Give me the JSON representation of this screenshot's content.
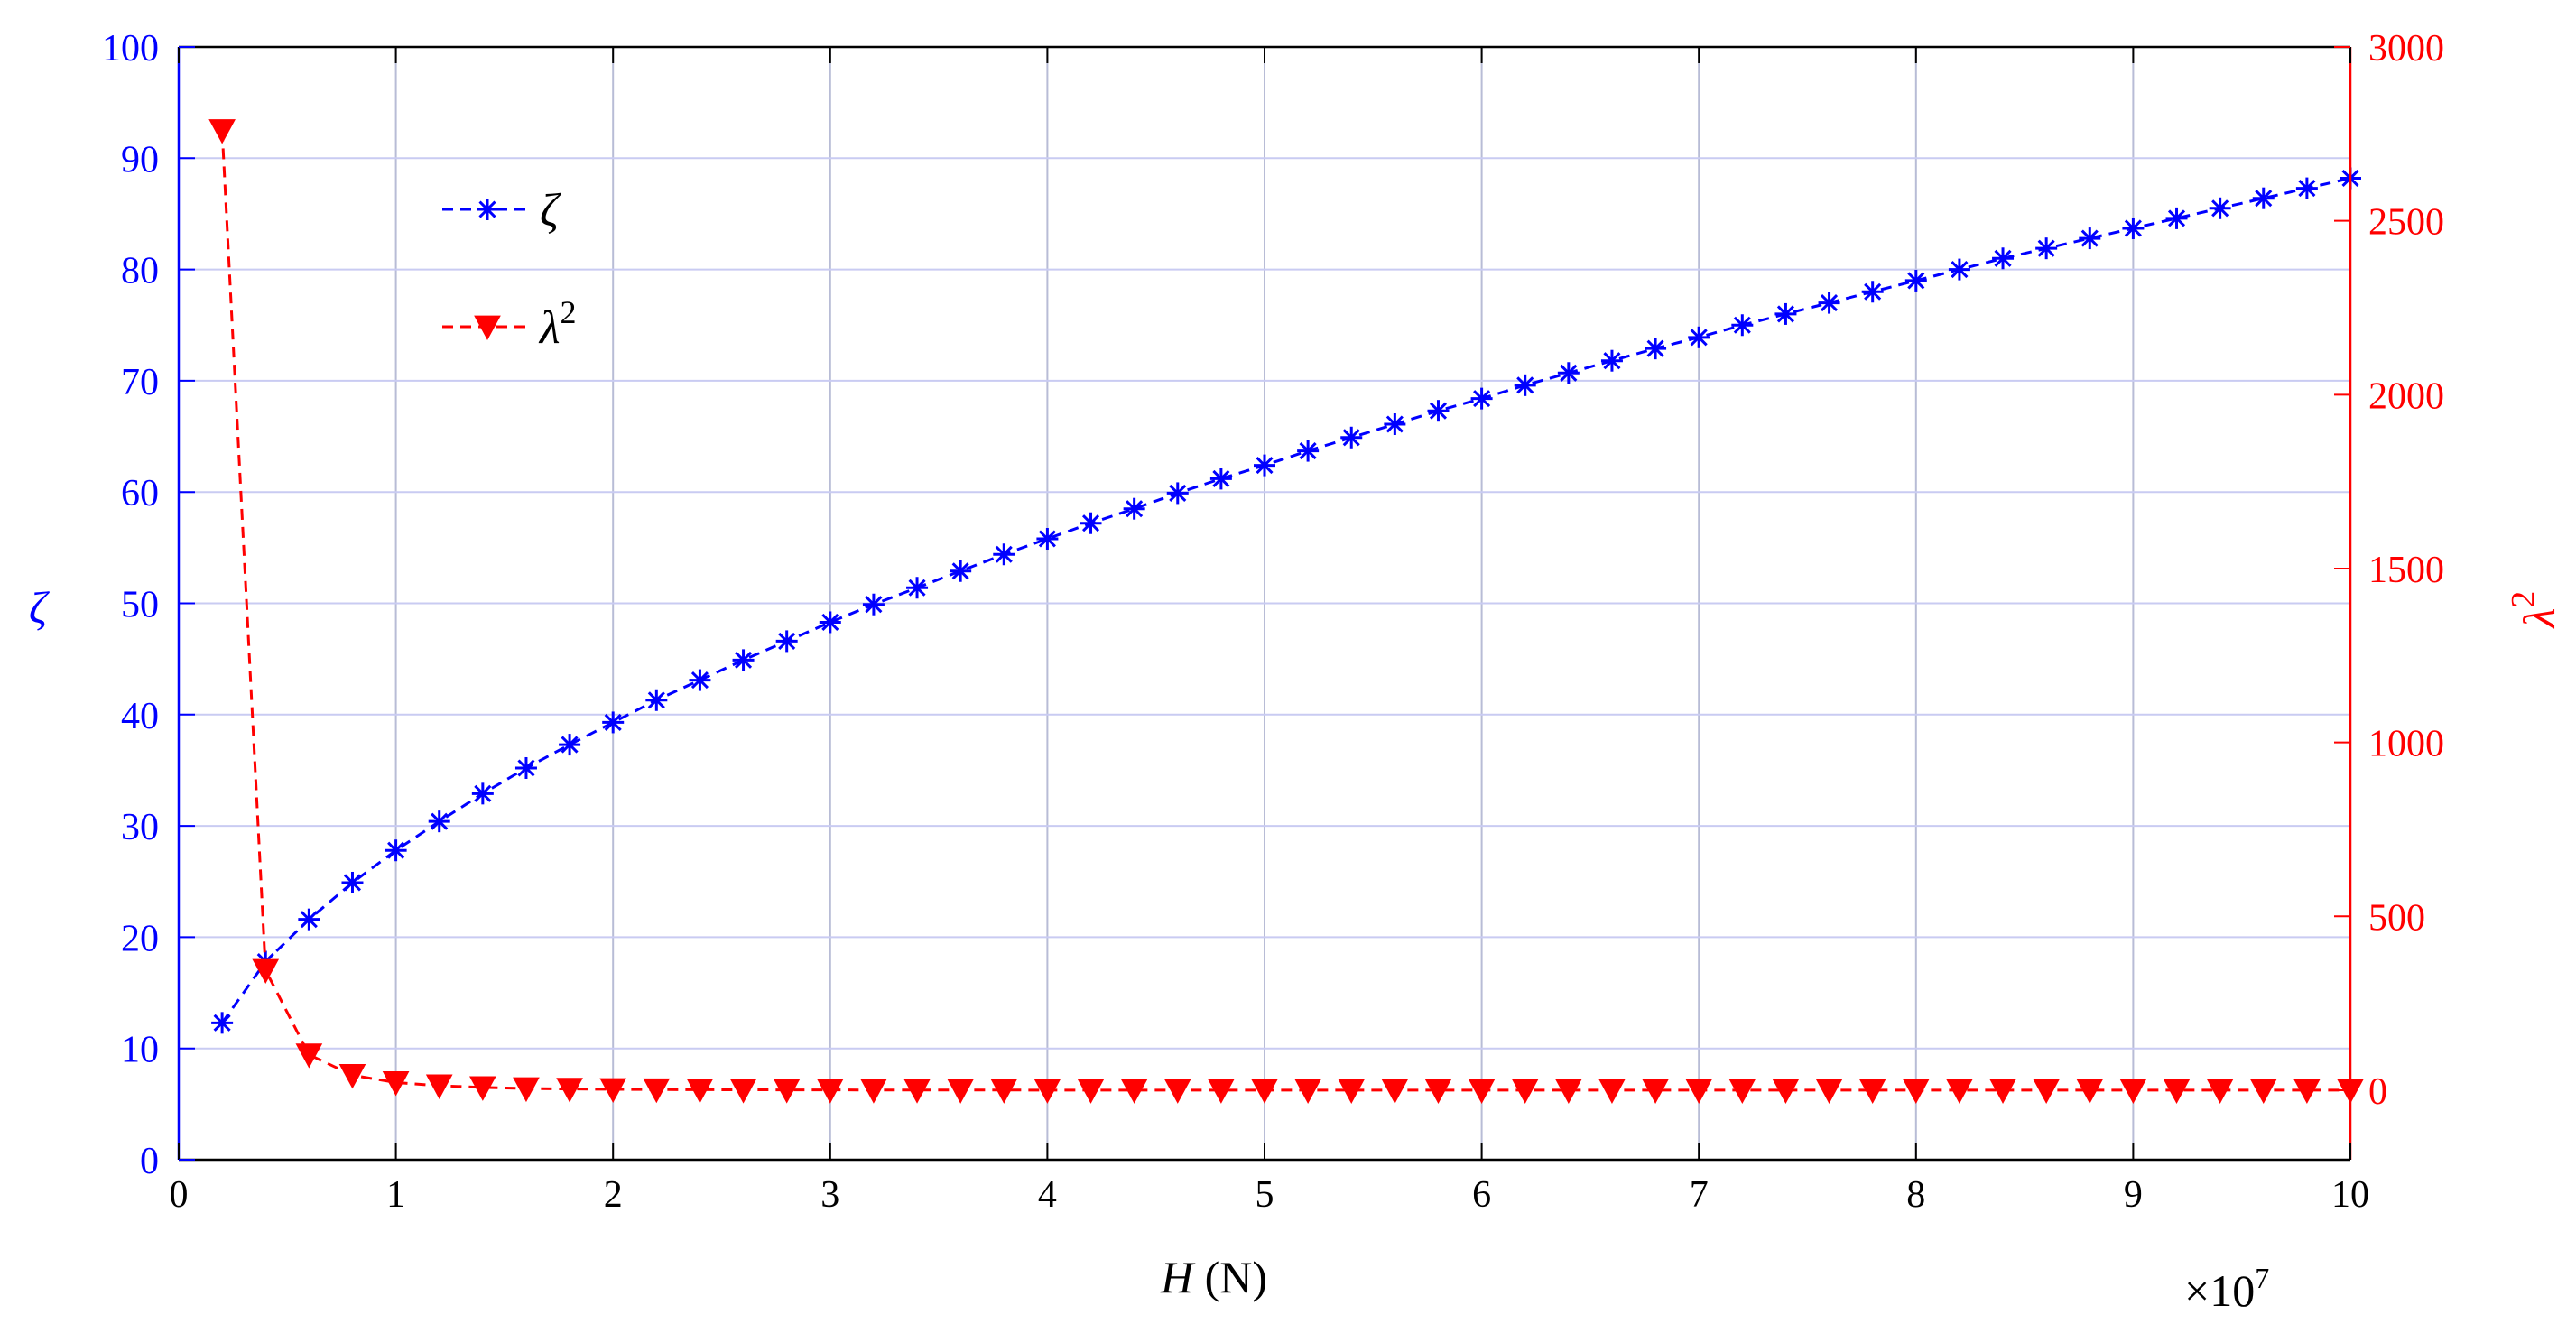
{
  "chart_data": {
    "type": "line",
    "x": [
      2000000,
      4000000,
      6000000,
      8000000,
      10000000,
      12000000,
      14000000,
      16000000,
      18000000,
      20000000,
      22000000,
      24000000,
      26000000,
      28000000,
      30000000,
      32000000,
      34000000,
      36000000,
      38000000,
      40000000,
      42000000,
      44000000,
      46000000,
      48000000,
      50000000,
      52000000,
      54000000,
      56000000,
      58000000,
      60000000,
      62000000,
      64000000,
      66000000,
      68000000,
      70000000,
      72000000,
      74000000,
      76000000,
      78000000,
      80000000,
      82000000,
      84000000,
      86000000,
      88000000,
      90000000,
      92000000,
      94000000,
      96000000,
      98000000,
      100000000
    ],
    "series": [
      {
        "name": "ζ",
        "axis": "left",
        "color": "#0000ff",
        "marker": "asterisk",
        "linestyle": "dashed",
        "values": [
          12.3,
          17.8,
          21.6,
          24.9,
          27.8,
          30.4,
          32.9,
          35.2,
          37.3,
          39.3,
          41.3,
          43.1,
          44.9,
          46.6,
          48.3,
          49.9,
          51.4,
          52.9,
          54.4,
          55.8,
          57.2,
          58.5,
          59.9,
          61.2,
          62.4,
          63.7,
          64.9,
          66.1,
          67.3,
          68.4,
          69.6,
          70.7,
          71.8,
          72.9,
          73.9,
          75.0,
          76.0,
          77.0,
          78.0,
          79.0,
          80.0,
          81.0,
          81.9,
          82.8,
          83.7,
          84.6,
          85.5,
          86.4,
          87.3,
          88.2
        ]
      },
      {
        "name": "λ²",
        "axis": "right",
        "color": "#ff0000",
        "marker": "triangle-down",
        "linestyle": "dashed",
        "values": [
          2760,
          345,
          102,
          43,
          22,
          13,
          8,
          5,
          3.5,
          2.5,
          1.8,
          1.4,
          1.1,
          0.9,
          0.7,
          0.6,
          0.5,
          0.4,
          0.35,
          0.3,
          0.25,
          0.2,
          0.18,
          0.16,
          0.14,
          0.12,
          0.11,
          0.1,
          0.09,
          0.08,
          0.07,
          0.06,
          0.06,
          0.05,
          0.05,
          0.04,
          0.04,
          0.04,
          0.03,
          0.03,
          0.03,
          0.03,
          0.02,
          0.02,
          0.02,
          0.02,
          0.02,
          0.02,
          0.02,
          0.01
        ]
      }
    ],
    "xlabel": "H (N)",
    "xlabel_italic": "H",
    "xlabel_unit": " (N)",
    "ylabel_left": "ζ",
    "ylabel_right": "λ",
    "ylabel_right_sup": "2",
    "x_exponent_base": "×10",
    "x_exponent_power": "7",
    "xlim": [
      0,
      100000000
    ],
    "ylim_left": [
      0,
      100
    ],
    "ylim_right": [
      -200,
      3000
    ],
    "xticks": [
      "0",
      "1",
      "2",
      "3",
      "4",
      "5",
      "6",
      "7",
      "8",
      "9",
      "10"
    ],
    "yticks_left": [
      "0",
      "10",
      "20",
      "30",
      "40",
      "50",
      "60",
      "70",
      "80",
      "90",
      "100"
    ],
    "yticks_right": [
      "0",
      "500",
      "1000",
      "1500",
      "2000",
      "2500",
      "3000"
    ],
    "legend": {
      "placement": "top-left",
      "entries": [
        {
          "label": "ζ",
          "sup": ""
        },
        {
          "label": "λ",
          "sup": "2"
        }
      ]
    },
    "grid": true,
    "colors": {
      "left_axis": "#0000ff",
      "right_axis": "#ff0000",
      "grid": "#b8bcd6"
    }
  }
}
